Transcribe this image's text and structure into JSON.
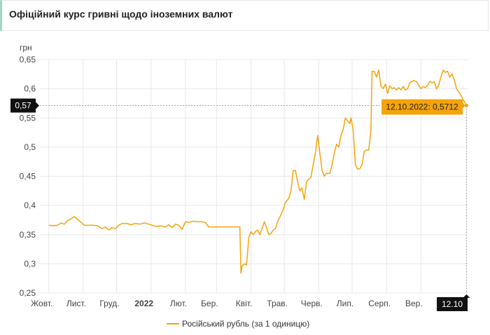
{
  "header": {
    "title": "Офіційний курс гривні щодо іноземних валют"
  },
  "chart_data": {
    "type": "line",
    "title": "Офіційний курс гривні щодо іноземних валют",
    "ylabel": "грн",
    "xlabel": "",
    "ylim": [
      0.25,
      0.65
    ],
    "yticks": [
      "0,25",
      "0,3",
      "0,35",
      "0,4",
      "0,45",
      "0,5",
      "0,55",
      "0,6",
      "0,65"
    ],
    "xticks": [
      "Жовт.",
      "Лист.",
      "Груд.",
      "2022",
      "Лют.",
      "Бер.",
      "Квіт.",
      "Трав.",
      "Черв.",
      "Лип.",
      "Серп.",
      "Вер."
    ],
    "grid": true,
    "legend": "bottom",
    "series": [
      {
        "name": "Російський рубль (за 1 одиницю)",
        "color": "#f5a30a",
        "points": [
          [
            "2021-10-01",
            0.366
          ],
          [
            "2021-10-05",
            0.365
          ],
          [
            "2021-10-09",
            0.366
          ],
          [
            "2021-10-12",
            0.37
          ],
          [
            "2021-10-15",
            0.368
          ],
          [
            "2021-10-18",
            0.374
          ],
          [
            "2021-10-21",
            0.377
          ],
          [
            "2021-10-24",
            0.381
          ],
          [
            "2021-10-27",
            0.376
          ],
          [
            "2021-10-30",
            0.371
          ],
          [
            "2021-11-02",
            0.366
          ],
          [
            "2021-11-06",
            0.366
          ],
          [
            "2021-11-10",
            0.366
          ],
          [
            "2021-11-14",
            0.365
          ],
          [
            "2021-11-18",
            0.36
          ],
          [
            "2021-11-21",
            0.363
          ],
          [
            "2021-11-24",
            0.358
          ],
          [
            "2021-11-27",
            0.362
          ],
          [
            "2021-11-30",
            0.36
          ],
          [
            "2021-12-03",
            0.366
          ],
          [
            "2021-12-06",
            0.369
          ],
          [
            "2021-12-10",
            0.369
          ],
          [
            "2021-12-14",
            0.367
          ],
          [
            "2021-12-18",
            0.369
          ],
          [
            "2021-12-22",
            0.368
          ],
          [
            "2021-12-26",
            0.37
          ],
          [
            "2021-12-30",
            0.368
          ],
          [
            "2022-01-02",
            0.366
          ],
          [
            "2022-01-06",
            0.364
          ],
          [
            "2022-01-10",
            0.365
          ],
          [
            "2022-01-14",
            0.363
          ],
          [
            "2022-01-17",
            0.367
          ],
          [
            "2022-01-20",
            0.362
          ],
          [
            "2022-01-23",
            0.368
          ],
          [
            "2022-01-26",
            0.366
          ],
          [
            "2022-01-29",
            0.359
          ],
          [
            "2022-02-01",
            0.372
          ],
          [
            "2022-02-04",
            0.371
          ],
          [
            "2022-02-08",
            0.373
          ],
          [
            "2022-02-12",
            0.372
          ],
          [
            "2022-02-16",
            0.372
          ],
          [
            "2022-02-19",
            0.371
          ],
          [
            "2022-02-22",
            0.363
          ],
          [
            "2022-03-01",
            0.363
          ],
          [
            "2022-03-10",
            0.363
          ],
          [
            "2022-03-20",
            0.363
          ],
          [
            "2022-03-22",
            0.363
          ],
          [
            "2022-03-23",
            0.284
          ],
          [
            "2022-03-24",
            0.296
          ],
          [
            "2022-03-26",
            0.3
          ],
          [
            "2022-03-28",
            0.298
          ],
          [
            "2022-03-30",
            0.345
          ],
          [
            "2022-04-01",
            0.355
          ],
          [
            "2022-04-03",
            0.35
          ],
          [
            "2022-04-05",
            0.355
          ],
          [
            "2022-04-07",
            0.358
          ],
          [
            "2022-04-09",
            0.35
          ],
          [
            "2022-04-11",
            0.36
          ],
          [
            "2022-04-13",
            0.372
          ],
          [
            "2022-04-15",
            0.362
          ],
          [
            "2022-04-17",
            0.35
          ],
          [
            "2022-04-19",
            0.352
          ],
          [
            "2022-04-21",
            0.358
          ],
          [
            "2022-04-23",
            0.36
          ],
          [
            "2022-04-25",
            0.372
          ],
          [
            "2022-04-27",
            0.38
          ],
          [
            "2022-04-30",
            0.393
          ],
          [
            "2022-05-02",
            0.405
          ],
          [
            "2022-05-05",
            0.412
          ],
          [
            "2022-05-07",
            0.425
          ],
          [
            "2022-05-09",
            0.46
          ],
          [
            "2022-05-11",
            0.46
          ],
          [
            "2022-05-13",
            0.44
          ],
          [
            "2022-05-15",
            0.425
          ],
          [
            "2022-05-17",
            0.43
          ],
          [
            "2022-05-19",
            0.41
          ],
          [
            "2022-05-21",
            0.44
          ],
          [
            "2022-05-23",
            0.445
          ],
          [
            "2022-05-25",
            0.448
          ],
          [
            "2022-05-27",
            0.47
          ],
          [
            "2022-05-29",
            0.49
          ],
          [
            "2022-05-31",
            0.52
          ],
          [
            "2022-06-02",
            0.49
          ],
          [
            "2022-06-04",
            0.46
          ],
          [
            "2022-06-06",
            0.45
          ],
          [
            "2022-06-08",
            0.455
          ],
          [
            "2022-06-11",
            0.455
          ],
          [
            "2022-06-13",
            0.47
          ],
          [
            "2022-06-15",
            0.49
          ],
          [
            "2022-06-17",
            0.505
          ],
          [
            "2022-06-19",
            0.5
          ],
          [
            "2022-06-21",
            0.52
          ],
          [
            "2022-06-23",
            0.53
          ],
          [
            "2022-06-25",
            0.55
          ],
          [
            "2022-06-27",
            0.545
          ],
          [
            "2022-06-29",
            0.54
          ],
          [
            "2022-06-30",
            0.55
          ],
          [
            "2022-07-02",
            0.53
          ],
          [
            "2022-07-04",
            0.47
          ],
          [
            "2022-07-06",
            0.462
          ],
          [
            "2022-07-08",
            0.463
          ],
          [
            "2022-07-10",
            0.47
          ],
          [
            "2022-07-12",
            0.493
          ],
          [
            "2022-07-14",
            0.495
          ],
          [
            "2022-07-16",
            0.495
          ],
          [
            "2022-07-18",
            0.53
          ],
          [
            "2022-07-19",
            0.63
          ],
          [
            "2022-07-21",
            0.63
          ],
          [
            "2022-07-23",
            0.62
          ],
          [
            "2022-07-25",
            0.632
          ],
          [
            "2022-07-27",
            0.605
          ],
          [
            "2022-07-29",
            0.6
          ],
          [
            "2022-07-31",
            0.608
          ],
          [
            "2022-08-02",
            0.592
          ],
          [
            "2022-08-04",
            0.605
          ],
          [
            "2022-08-06",
            0.6
          ],
          [
            "2022-08-08",
            0.602
          ],
          [
            "2022-08-10",
            0.598
          ],
          [
            "2022-08-12",
            0.602
          ],
          [
            "2022-08-14",
            0.598
          ],
          [
            "2022-08-16",
            0.604
          ],
          [
            "2022-08-18",
            0.598
          ],
          [
            "2022-08-20",
            0.6
          ],
          [
            "2022-08-22",
            0.61
          ],
          [
            "2022-08-24",
            0.613
          ],
          [
            "2022-08-26",
            0.614
          ],
          [
            "2022-08-28",
            0.612
          ],
          [
            "2022-08-30",
            0.606
          ],
          [
            "2022-09-01",
            0.6
          ],
          [
            "2022-09-03",
            0.604
          ],
          [
            "2022-09-05",
            0.602
          ],
          [
            "2022-09-07",
            0.606
          ],
          [
            "2022-09-09",
            0.613
          ],
          [
            "2022-09-11",
            0.61
          ],
          [
            "2022-09-13",
            0.612
          ],
          [
            "2022-09-15",
            0.6
          ],
          [
            "2022-09-17",
            0.606
          ],
          [
            "2022-09-19",
            0.62
          ],
          [
            "2022-09-21",
            0.632
          ],
          [
            "2022-09-23",
            0.628
          ],
          [
            "2022-09-25",
            0.63
          ],
          [
            "2022-09-27",
            0.62
          ],
          [
            "2022-09-29",
            0.625
          ],
          [
            "2022-10-01",
            0.615
          ],
          [
            "2022-10-03",
            0.6
          ],
          [
            "2022-10-05",
            0.595
          ],
          [
            "2022-10-08",
            0.585
          ],
          [
            "2022-10-10",
            0.578
          ],
          [
            "2022-10-12",
            0.5712
          ]
        ]
      }
    ],
    "crosshair": {
      "y_label": "0,57",
      "x_label": "12.10",
      "tooltip": "12.10.2022: 0,5712"
    }
  },
  "colors": {
    "line": "#f5a30a",
    "grid": "#e8e8e8",
    "label_bg": "#111111",
    "tooltip_bg": "#f5a30a"
  }
}
